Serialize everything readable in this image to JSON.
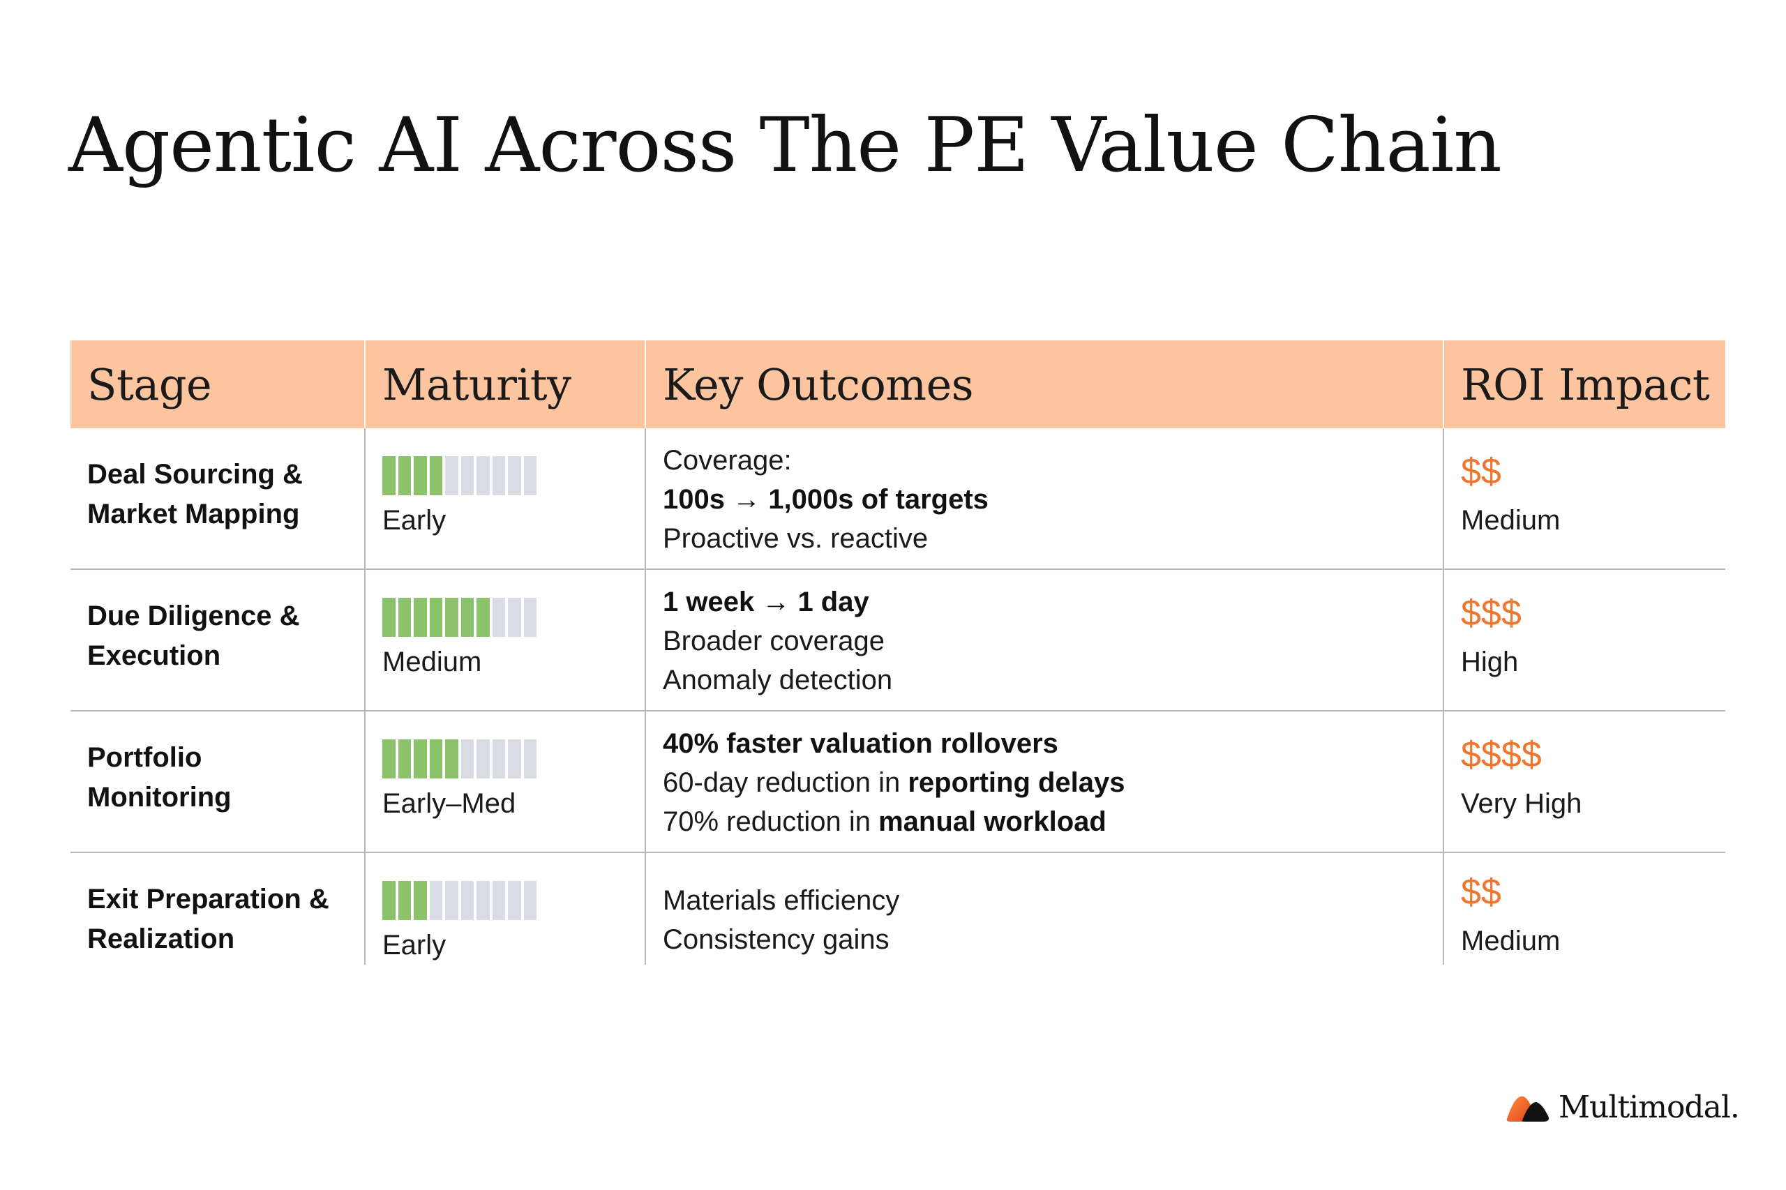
{
  "title": "Agentic AI Across The PE Value Chain",
  "colors": {
    "header_bg": "#fcc5a0",
    "bar_filled": "#8cc269",
    "bar_empty": "#d9dde3",
    "roi_accent": "#f0762f"
  },
  "table": {
    "headers": [
      "Stage",
      "Maturity",
      "Key Outcomes",
      "ROI Impact"
    ],
    "rows": [
      {
        "stage": [
          "Deal Sourcing &",
          "Market Mapping"
        ],
        "maturity": {
          "filled": 4,
          "total": 10,
          "label": "Early"
        },
        "outcomes": [
          [
            {
              "text": "Coverage:",
              "bold": false
            }
          ],
          [
            {
              "text": "100s → 1,000s of targets",
              "bold": true
            }
          ],
          [
            {
              "text": "Proactive vs. reactive",
              "bold": false
            }
          ]
        ],
        "roi": {
          "dollars": "$$",
          "label": "Medium"
        }
      },
      {
        "stage": [
          "Due Diligence &",
          "Execution"
        ],
        "maturity": {
          "filled": 7,
          "total": 10,
          "label": "Medium"
        },
        "outcomes": [
          [
            {
              "text": "1 week → 1 day",
              "bold": true
            }
          ],
          [
            {
              "text": "Broader coverage",
              "bold": false
            }
          ],
          [
            {
              "text": "Anomaly detection",
              "bold": false
            }
          ]
        ],
        "roi": {
          "dollars": "$$$",
          "label": "High"
        }
      },
      {
        "stage": [
          "Portfolio",
          "Monitoring"
        ],
        "maturity": {
          "filled": 5,
          "total": 10,
          "label": "Early–Med"
        },
        "outcomes": [
          [
            {
              "text": "40% faster valuation rollovers",
              "bold": true
            }
          ],
          [
            {
              "text": "60-day reduction in ",
              "bold": false
            },
            {
              "text": "reporting delays",
              "bold": true
            }
          ],
          [
            {
              "text": "70% reduction in ",
              "bold": false
            },
            {
              "text": "manual workload",
              "bold": true
            }
          ]
        ],
        "roi": {
          "dollars": "$$$$",
          "label": "Very High"
        }
      },
      {
        "stage": [
          "Exit Preparation &",
          "Realization"
        ],
        "maturity": {
          "filled": 3,
          "total": 10,
          "label": "Early"
        },
        "outcomes": [
          [
            {
              "text": "Materials efficiency",
              "bold": false
            }
          ],
          [
            {
              "text": "Consistency gains",
              "bold": false
            }
          ]
        ],
        "roi": {
          "dollars": "$$",
          "label": "Medium"
        }
      }
    ]
  },
  "brand": {
    "name": "Multimodal.",
    "icon": "multimodal-logo-icon"
  }
}
